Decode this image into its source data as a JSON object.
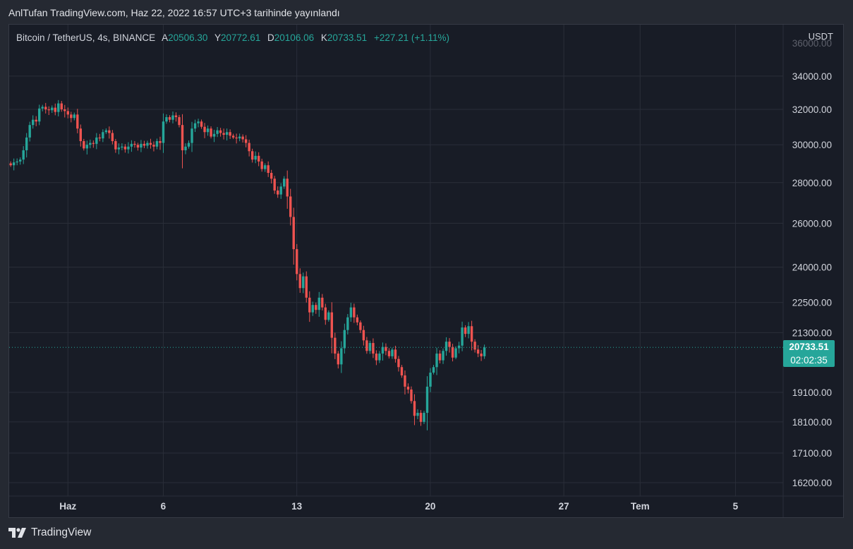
{
  "header": {
    "published_text": "AnlTufan TradingView.com, Haz 22, 2022 16:57 UTC+3 tarihinde yayınlandı"
  },
  "legend": {
    "symbol": "Bitcoin / TetherUS, 4s, BINANCE",
    "open_label": "A",
    "open": "20506.30",
    "high_label": "Y",
    "high": "20772.61",
    "low_label": "D",
    "low": "20106.06",
    "close_label": "K",
    "close": "20733.51",
    "change": "+227.21 (+1.11%)"
  },
  "axis": {
    "currency": "USDT"
  },
  "last_price": {
    "price": "20733.51",
    "countdown": "02:02:35"
  },
  "branding": {
    "name": "TradingView"
  },
  "colors": {
    "up": "#26a69a",
    "down": "#ef5350",
    "background": "#181c26",
    "grid": "#2a2e39"
  },
  "chart_data": {
    "type": "candlestick",
    "symbol": "BTCUSDT",
    "interval": "4h",
    "y_scale": "log",
    "y_ticks": [
      16200,
      17100,
      18100,
      19100,
      21300,
      22500,
      24000,
      26000,
      28000,
      30000,
      32000,
      34000
    ],
    "x_ticks": [
      {
        "label": "Haz",
        "day": 1
      },
      {
        "label": "6",
        "day": 6
      },
      {
        "label": "13",
        "day": 13
      },
      {
        "label": "20",
        "day": 20
      },
      {
        "label": "27",
        "day": 27
      },
      {
        "label": "Tem",
        "day": 31
      },
      {
        "label": "5",
        "day": 36
      }
    ],
    "x_domain_days": [
      -2.08,
      38.5
    ],
    "last_price": 20733.51,
    "series_closes_start_day": -2.0,
    "series_closes_step_days": 0.1667,
    "series_open": 29000,
    "closes": [
      28900,
      29050,
      29100,
      29200,
      29700,
      30400,
      31100,
      31400,
      31300,
      32050,
      32150,
      32000,
      31950,
      32100,
      31850,
      32350,
      32000,
      31900,
      31700,
      31500,
      31700,
      30900,
      30200,
      29800,
      30000,
      30100,
      30050,
      30400,
      30350,
      30700,
      30800,
      30650,
      30200,
      29750,
      29850,
      29900,
      29750,
      29900,
      30050,
      30000,
      29850,
      30050,
      29950,
      30100,
      30000,
      29900,
      30200,
      30100,
      31300,
      31550,
      31400,
      31650,
      31550,
      31100,
      29700,
      29900,
      30100,
      30900,
      31200,
      31300,
      31000,
      30700,
      30900,
      30450,
      30600,
      30800,
      30650,
      30550,
      30700,
      30500,
      30400,
      30350,
      30450,
      30300,
      30100,
      29650,
      29200,
      29400,
      29100,
      28700,
      28900,
      28500,
      28200,
      27600,
      27400,
      27800,
      28200,
      27300,
      26300,
      24800,
      23700,
      23100,
      23600,
      22700,
      22100,
      22400,
      22200,
      22700,
      22300,
      21800,
      22100,
      21100,
      20500,
      20100,
      20700,
      21400,
      21900,
      22300,
      21900,
      21700,
      21400,
      21000,
      20600,
      20900,
      20500,
      20250,
      20500,
      20750,
      20600,
      20400,
      20650,
      20300,
      20000,
      19700,
      19300,
      19200,
      18800,
      18300,
      18400,
      18100,
      18400,
      19300,
      19800,
      20000,
      20500,
      20250,
      20600,
      20950,
      20750,
      20350,
      20700,
      20800,
      21500,
      21250,
      21550,
      20950,
      20650,
      20500,
      20400,
      20733.51
    ]
  }
}
